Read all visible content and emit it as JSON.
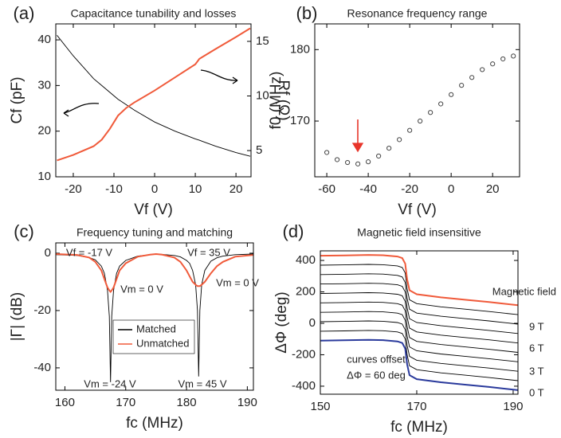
{
  "chart_data": [
    {
      "type": "line",
      "label": "(a)",
      "title": "Capacitance tunability and losses",
      "x_label": "Vf (V)",
      "y_label": "Cf (pF)",
      "y2_label": "Rf (Ω)",
      "x": [
        -24,
        -20,
        -15,
        -13,
        -11,
        -9,
        -7,
        -5,
        0,
        5,
        10,
        11,
        15,
        20,
        23.5
      ],
      "series": [
        {
          "color": "#000000",
          "values": [
            41,
            36.5,
            31.5,
            30,
            28.5,
            27,
            25.8,
            24.6,
            22,
            20,
            18.3,
            18,
            16.7,
            15.3,
            14.5
          ]
        },
        {
          "color": "#f05a3a",
          "axis": "y2",
          "values": [
            4.1,
            4.6,
            5.4,
            6.0,
            7.0,
            8.2,
            8.9,
            9.4,
            10.5,
            11.7,
            12.9,
            13.4,
            14.3,
            15.4,
            16.2
          ]
        }
      ],
      "xlim": [
        -24.3,
        23.7
      ],
      "xticks": [
        -20,
        -10,
        0,
        10,
        20
      ],
      "ylim": [
        10,
        43.5
      ],
      "yticks": [
        10,
        20,
        30,
        40
      ],
      "y2lim": [
        2.6,
        16.6
      ],
      "y2ticks": [
        5,
        10,
        15
      ]
    },
    {
      "type": "scatter",
      "label": "(b)",
      "title": "Resonance frequency range",
      "x_label": "Vf (V)",
      "y_label": "f0 (MHz)",
      "x": [
        -60,
        -55,
        -50,
        -45,
        -40,
        -35,
        -30,
        -25,
        -20,
        -15,
        -10,
        -5,
        0,
        5,
        10,
        15,
        20,
        25,
        30
      ],
      "values": [
        165.6,
        164.6,
        164.2,
        164,
        164.3,
        165.1,
        166.2,
        167.4,
        168.7,
        170,
        171.2,
        172.4,
        173.7,
        175,
        176.1,
        177.2,
        178,
        178.7,
        179.1
      ],
      "color": "#444444",
      "xlim": [
        -65.8,
        33
      ],
      "xticks": [
        -60,
        -40,
        -20,
        0,
        20
      ],
      "ylim": [
        162.2,
        183.6
      ],
      "yticks": [
        170,
        180
      ]
    },
    {
      "type": "line",
      "label": "(c)",
      "title": "Frequency tuning and matching",
      "x_label": "fc (MHz)",
      "y_label": "|Γ| (dB)",
      "x": [
        158.5,
        162,
        164,
        165,
        166,
        166.5,
        167,
        167.3,
        167.5,
        167.7,
        168,
        168.5,
        169,
        170,
        172,
        174,
        175,
        176,
        178,
        179,
        180,
        180.5,
        181,
        181.5,
        181.8,
        182,
        182.2,
        182.5,
        183,
        184,
        185,
        186,
        188,
        191
      ],
      "series": [
        {
          "name": "Matched",
          "color": "#000000",
          "values": [
            -0.5,
            -0.8,
            -1.5,
            -2.3,
            -4.5,
            -7,
            -13,
            -22,
            -45,
            -22,
            -13,
            -7,
            -4.5,
            -2.5,
            -1,
            -0.5,
            -0.3,
            -0.4,
            -0.8,
            -1.3,
            -2.5,
            -3.5,
            -6,
            -11,
            -20,
            -43,
            -20,
            -11,
            -6,
            -2.8,
            -1.6,
            -1,
            -0.5,
            -0.3
          ]
        },
        {
          "name": "Unmatched",
          "color": "#f05a3a",
          "values": [
            -0.3,
            -0.6,
            -1.5,
            -3,
            -6,
            -9,
            -12,
            -13,
            -13.5,
            -13,
            -12,
            -9,
            -6,
            -3.5,
            -1.2,
            -0.5,
            -0.3,
            -0.5,
            -1.5,
            -3,
            -6,
            -8,
            -10,
            -11,
            -11.5,
            -11.5,
            -11.5,
            -11,
            -10,
            -7,
            -4.5,
            -3,
            -1.2,
            -0.6
          ]
        }
      ],
      "annotations": [
        "Vf = -17 V",
        "Vf = 35 V",
        "Vm = 0 V",
        "Vm = 0 V",
        "Vm = -24 V",
        "Vm = 45 V"
      ],
      "legend": "center",
      "xlim": [
        158.5,
        191
      ],
      "xticks": [
        160,
        170,
        180,
        190
      ],
      "ylim": [
        -47.8,
        3.6
      ],
      "yticks": [
        0,
        -20,
        -40
      ]
    },
    {
      "type": "line",
      "label": "(d)",
      "title": "Magnetic field insensitive",
      "x_label": "fc (MHz)",
      "y_label": "ΔΦ (deg)",
      "x": [
        150,
        155,
        160,
        163,
        166,
        167,
        167.6,
        168,
        168.5,
        170,
        175,
        180,
        185,
        191
      ],
      "series": [
        {
          "color": "#2a3a9c",
          "values": [
            -110,
            -108,
            -105,
            -107,
            -115,
            -125,
            -160,
            -260,
            -330,
            -355,
            -375,
            -390,
            -405,
            -425
          ]
        },
        {
          "color": "#000000",
          "values": [
            -50,
            -48,
            -45,
            -47,
            -55,
            -65,
            -100,
            -200,
            -270,
            -295,
            -315,
            -330,
            -345,
            -365
          ]
        },
        {
          "color": "#000000",
          "values": [
            10,
            12,
            15,
            13,
            5,
            -5,
            -40,
            -140,
            -210,
            -235,
            -255,
            -270,
            -285,
            -305
          ]
        },
        {
          "color": "#000000",
          "values": [
            70,
            72,
            75,
            73,
            65,
            55,
            20,
            -80,
            -150,
            -175,
            -195,
            -210,
            -225,
            -245
          ]
        },
        {
          "color": "#000000",
          "values": [
            130,
            132,
            135,
            133,
            125,
            115,
            80,
            -20,
            -90,
            -115,
            -135,
            -150,
            -165,
            -185
          ]
        },
        {
          "color": "#000000",
          "values": [
            190,
            192,
            195,
            193,
            185,
            175,
            140,
            40,
            -30,
            -55,
            -75,
            -90,
            -105,
            -125
          ]
        },
        {
          "color": "#000000",
          "values": [
            250,
            252,
            255,
            253,
            245,
            235,
            200,
            100,
            30,
            5,
            -15,
            -30,
            -45,
            -65
          ]
        },
        {
          "color": "#000000",
          "values": [
            310,
            312,
            315,
            313,
            305,
            295,
            260,
            160,
            90,
            65,
            45,
            30,
            15,
            -5
          ]
        },
        {
          "color": "#000000",
          "values": [
            370,
            372,
            375,
            373,
            365,
            355,
            320,
            220,
            150,
            125,
            105,
            90,
            75,
            55
          ]
        },
        {
          "color": "#f05a3a",
          "values": [
            430,
            432,
            435,
            433,
            425,
            415,
            380,
            280,
            210,
            185,
            165,
            150,
            135,
            115
          ]
        }
      ],
      "annotations": [
        "Magnetic field",
        "9 T",
        "6 T",
        "3 T",
        "0 T",
        "curves offset",
        "ΔΦ = 60 deg"
      ],
      "xlim": [
        150,
        191
      ],
      "xticks": [
        150,
        170,
        190
      ],
      "ylim": [
        -451,
        461
      ],
      "yticks": [
        -400,
        -200,
        0,
        200,
        400
      ]
    }
  ]
}
